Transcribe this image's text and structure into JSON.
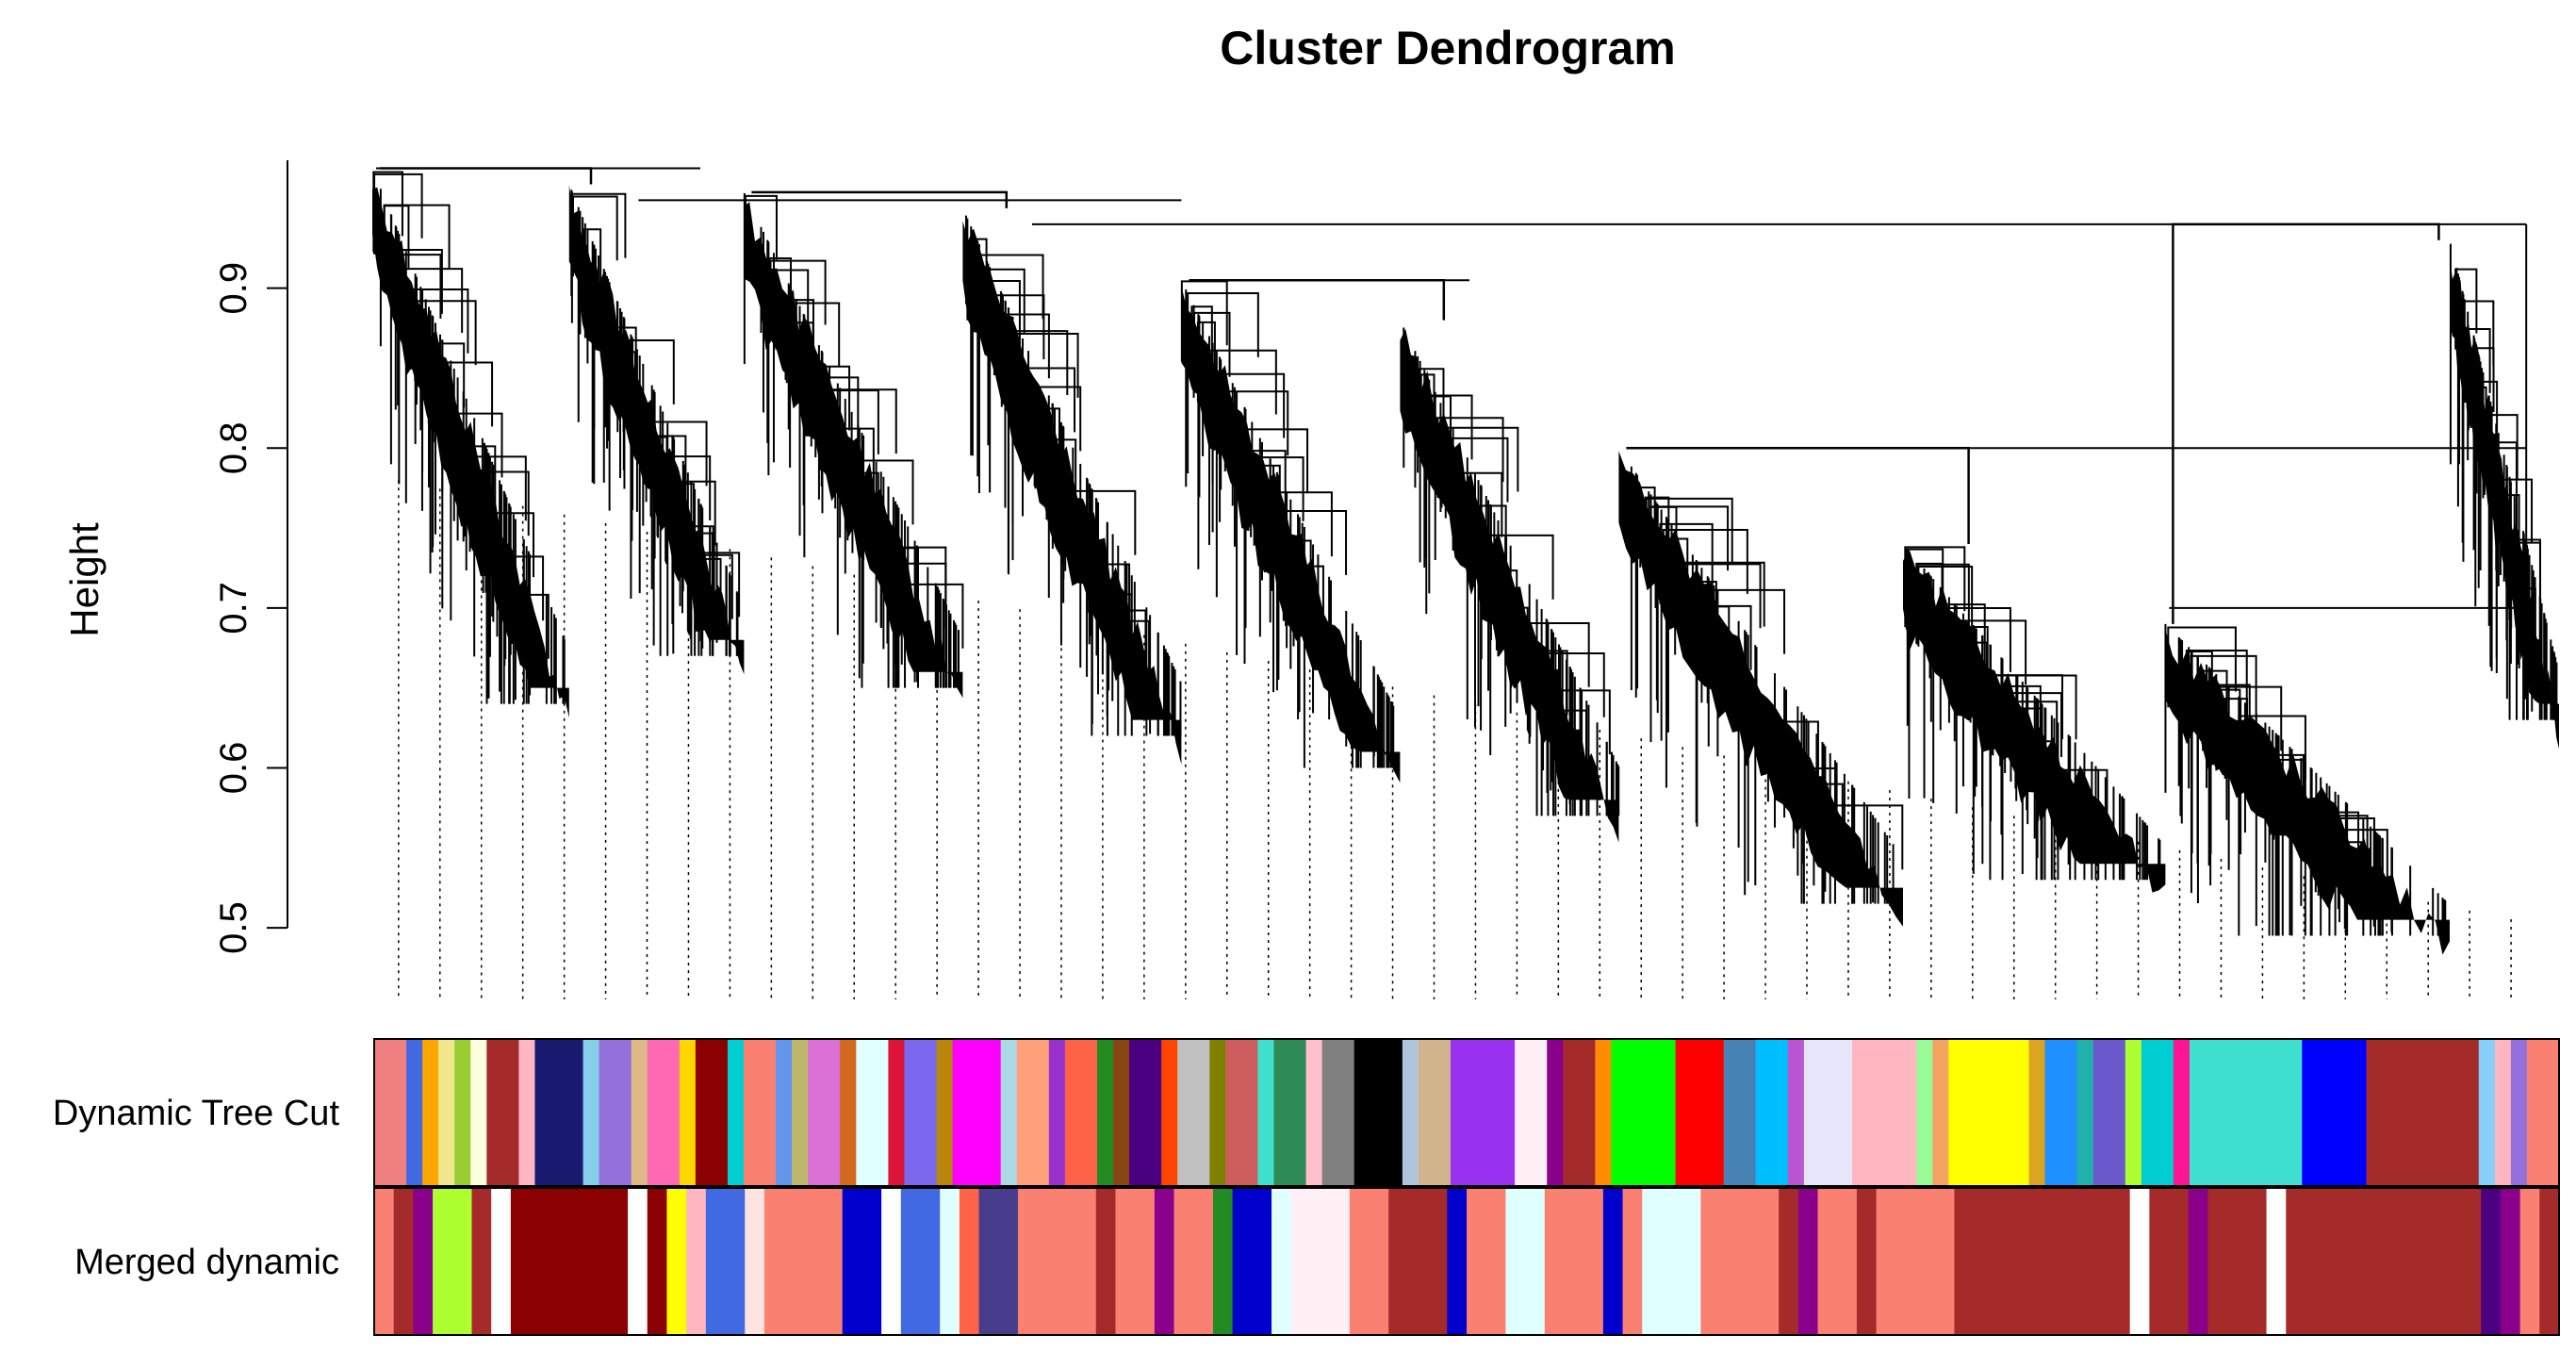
{
  "chart_data": {
    "type": "dendrogram",
    "title": "Cluster Dendrogram",
    "xlabel": "",
    "ylabel": "Height",
    "ylim": [
      0.48,
      0.98
    ],
    "yticks": [
      0.5,
      0.6,
      0.7,
      0.8,
      0.9
    ],
    "ytick_labels": [
      "0.5",
      "0.6",
      "0.7",
      "0.8",
      "0.9"
    ],
    "grid": false,
    "leaf_count": 52,
    "clusters": [
      {
        "start": 0.0,
        "end": 0.09,
        "top": 0.975,
        "low": 0.64
      },
      {
        "start": 0.09,
        "end": 0.17,
        "top": 0.965,
        "low": 0.67
      },
      {
        "start": 0.17,
        "end": 0.27,
        "top": 0.96,
        "low": 0.65
      },
      {
        "start": 0.27,
        "end": 0.37,
        "top": 0.95,
        "low": 0.62
      },
      {
        "start": 0.37,
        "end": 0.47,
        "top": 0.905,
        "low": 0.6
      },
      {
        "start": 0.47,
        "end": 0.57,
        "top": 0.88,
        "low": 0.57
      },
      {
        "start": 0.57,
        "end": 0.7,
        "top": 0.8,
        "low": 0.515
      },
      {
        "start": 0.7,
        "end": 0.82,
        "top": 0.74,
        "low": 0.53
      },
      {
        "start": 0.82,
        "end": 0.95,
        "top": 0.69,
        "low": 0.495
      },
      {
        "start": 0.95,
        "end": 1.0,
        "top": 0.93,
        "low": 0.63
      }
    ],
    "merges": [
      {
        "left": 0,
        "right": 1,
        "height": 0.975
      },
      {
        "left": 2,
        "right": 3,
        "height": 0.96
      },
      {
        "left": 4,
        "right": 5,
        "height": 0.905
      },
      {
        "left": 6,
        "right": 7,
        "height": 0.8
      },
      {
        "left": 8,
        "right": 9,
        "height": 0.94
      }
    ],
    "color_rows": [
      {
        "label": "Dynamic Tree Cut",
        "segments": [
          {
            "w": 2,
            "c": "#F08080"
          },
          {
            "w": 1,
            "c": "#4169E1"
          },
          {
            "w": 1,
            "c": "#FFA500"
          },
          {
            "w": 1,
            "c": "#F0E68C"
          },
          {
            "w": 1,
            "c": "#9ACD32"
          },
          {
            "w": 1,
            "c": "#FFFFE0"
          },
          {
            "w": 2,
            "c": "#A52A2A"
          },
          {
            "w": 1,
            "c": "#FFB6C1"
          },
          {
            "w": 3,
            "c": "#191970"
          },
          {
            "w": 1,
            "c": "#87CEEB"
          },
          {
            "w": 2,
            "c": "#9370DB"
          },
          {
            "w": 1,
            "c": "#DEB887"
          },
          {
            "w": 2,
            "c": "#FF69B4"
          },
          {
            "w": 1,
            "c": "#FFD700"
          },
          {
            "w": 2,
            "c": "#8B0000"
          },
          {
            "w": 1,
            "c": "#00CED1"
          },
          {
            "w": 2,
            "c": "#FA8072"
          },
          {
            "w": 1,
            "c": "#6495ED"
          },
          {
            "w": 1,
            "c": "#BDB76B"
          },
          {
            "w": 2,
            "c": "#DA70D6"
          },
          {
            "w": 1,
            "c": "#D2691E"
          },
          {
            "w": 2,
            "c": "#E0FFFF"
          },
          {
            "w": 1,
            "c": "#DC143C"
          },
          {
            "w": 2,
            "c": "#7B68EE"
          },
          {
            "w": 1,
            "c": "#B8860B"
          },
          {
            "w": 3,
            "c": "#FF00FF"
          },
          {
            "w": 1,
            "c": "#ADD8E6"
          },
          {
            "w": 2,
            "c": "#FFA07A"
          },
          {
            "w": 1,
            "c": "#9932CC"
          },
          {
            "w": 2,
            "c": "#FF6347"
          },
          {
            "w": 1,
            "c": "#228B22"
          },
          {
            "w": 1,
            "c": "#8B4513"
          },
          {
            "w": 2,
            "c": "#4B0082"
          },
          {
            "w": 1,
            "c": "#FF4500"
          },
          {
            "w": 2,
            "c": "#C0C0C0"
          },
          {
            "w": 1,
            "c": "#808000"
          },
          {
            "w": 2,
            "c": "#CD5C5C"
          },
          {
            "w": 1,
            "c": "#40E0D0"
          },
          {
            "w": 2,
            "c": "#2E8B57"
          },
          {
            "w": 1,
            "c": "#FFC0CB"
          },
          {
            "w": 2,
            "c": "#808080"
          },
          {
            "w": 3,
            "c": "#000000"
          },
          {
            "w": 1,
            "c": "#B0C4DE"
          },
          {
            "w": 2,
            "c": "#D2B48C"
          },
          {
            "w": 4,
            "c": "#9932F0"
          },
          {
            "w": 2,
            "c": "#FFF0F5"
          },
          {
            "w": 1,
            "c": "#8B008B"
          },
          {
            "w": 2,
            "c": "#A52A2A"
          },
          {
            "w": 1,
            "c": "#FF8C00"
          },
          {
            "w": 4,
            "c": "#00FF00"
          },
          {
            "w": 3,
            "c": "#FF0000"
          },
          {
            "w": 2,
            "c": "#4682B4"
          },
          {
            "w": 2,
            "c": "#00BFFF"
          },
          {
            "w": 1,
            "c": "#BA55D3"
          },
          {
            "w": 3,
            "c": "#E6E6FA"
          },
          {
            "w": 4,
            "c": "#FFB6C1"
          },
          {
            "w": 1,
            "c": "#98FB98"
          },
          {
            "w": 1,
            "c": "#F4A460"
          },
          {
            "w": 5,
            "c": "#FFFF00"
          },
          {
            "w": 1,
            "c": "#DAA520"
          },
          {
            "w": 2,
            "c": "#1E90FF"
          },
          {
            "w": 1,
            "c": "#20B2AA"
          },
          {
            "w": 2,
            "c": "#6A5ACD"
          },
          {
            "w": 1,
            "c": "#ADFF2F"
          },
          {
            "w": 2,
            "c": "#00CED1"
          },
          {
            "w": 1,
            "c": "#FF1493"
          },
          {
            "w": 7,
            "c": "#40E0D0"
          },
          {
            "w": 4,
            "c": "#0000FF"
          },
          {
            "w": 7,
            "c": "#A52A2A"
          },
          {
            "w": 1,
            "c": "#87CEFA"
          },
          {
            "w": 1,
            "c": "#FFB6C1"
          },
          {
            "w": 1,
            "c": "#9370DB"
          },
          {
            "w": 2,
            "c": "#FA8072"
          }
        ]
      },
      {
        "label": "Merged dynamic",
        "segments": [
          {
            "w": 1,
            "c": "#FA8072"
          },
          {
            "w": 1,
            "c": "#A52A2A"
          },
          {
            "w": 1,
            "c": "#8B008B"
          },
          {
            "w": 2,
            "c": "#ADFF2F"
          },
          {
            "w": 1,
            "c": "#A52A2A"
          },
          {
            "w": 1,
            "c": "#FFFFFF"
          },
          {
            "w": 6,
            "c": "#8B0000"
          },
          {
            "w": 1,
            "c": "#FFFFFF"
          },
          {
            "w": 1,
            "c": "#8B0000"
          },
          {
            "w": 1,
            "c": "#FFFF00"
          },
          {
            "w": 1,
            "c": "#FFB6C1"
          },
          {
            "w": 2,
            "c": "#4169E1"
          },
          {
            "w": 1,
            "c": "#FFE4E1"
          },
          {
            "w": 4,
            "c": "#FA8072"
          },
          {
            "w": 2,
            "c": "#0000CD"
          },
          {
            "w": 1,
            "c": "#FFFFFF"
          },
          {
            "w": 2,
            "c": "#4169E1"
          },
          {
            "w": 1,
            "c": "#E0FFFF"
          },
          {
            "w": 1,
            "c": "#FF6347"
          },
          {
            "w": 2,
            "c": "#483D8B"
          },
          {
            "w": 4,
            "c": "#FA8072"
          },
          {
            "w": 1,
            "c": "#A52A2A"
          },
          {
            "w": 2,
            "c": "#FA8072"
          },
          {
            "w": 1,
            "c": "#8B008B"
          },
          {
            "w": 2,
            "c": "#FA8072"
          },
          {
            "w": 1,
            "c": "#228B22"
          },
          {
            "w": 2,
            "c": "#0000CD"
          },
          {
            "w": 1,
            "c": "#E0FFFF"
          },
          {
            "w": 3,
            "c": "#FFF0F5"
          },
          {
            "w": 2,
            "c": "#FA8072"
          },
          {
            "w": 3,
            "c": "#A52A2A"
          },
          {
            "w": 1,
            "c": "#0000CD"
          },
          {
            "w": 2,
            "c": "#FA8072"
          },
          {
            "w": 2,
            "c": "#E0FFFF"
          },
          {
            "w": 3,
            "c": "#FA8072"
          },
          {
            "w": 1,
            "c": "#0000CD"
          },
          {
            "w": 1,
            "c": "#FA8072"
          },
          {
            "w": 3,
            "c": "#E0FFFF"
          },
          {
            "w": 4,
            "c": "#FA8072"
          },
          {
            "w": 1,
            "c": "#A52A2A"
          },
          {
            "w": 1,
            "c": "#8B008B"
          },
          {
            "w": 2,
            "c": "#FA8072"
          },
          {
            "w": 1,
            "c": "#A52A2A"
          },
          {
            "w": 4,
            "c": "#FA8072"
          },
          {
            "w": 9,
            "c": "#A52A2A"
          },
          {
            "w": 1,
            "c": "#FFFFFF"
          },
          {
            "w": 2,
            "c": "#A52A2A"
          },
          {
            "w": 1,
            "c": "#8B008B"
          },
          {
            "w": 3,
            "c": "#A52A2A"
          },
          {
            "w": 1,
            "c": "#FFFFFF"
          },
          {
            "w": 10,
            "c": "#A52A2A"
          },
          {
            "w": 1,
            "c": "#4B0082"
          },
          {
            "w": 1,
            "c": "#8B008B"
          },
          {
            "w": 1,
            "c": "#FA8072"
          },
          {
            "w": 1,
            "c": "#A52A2A"
          }
        ]
      }
    ]
  }
}
